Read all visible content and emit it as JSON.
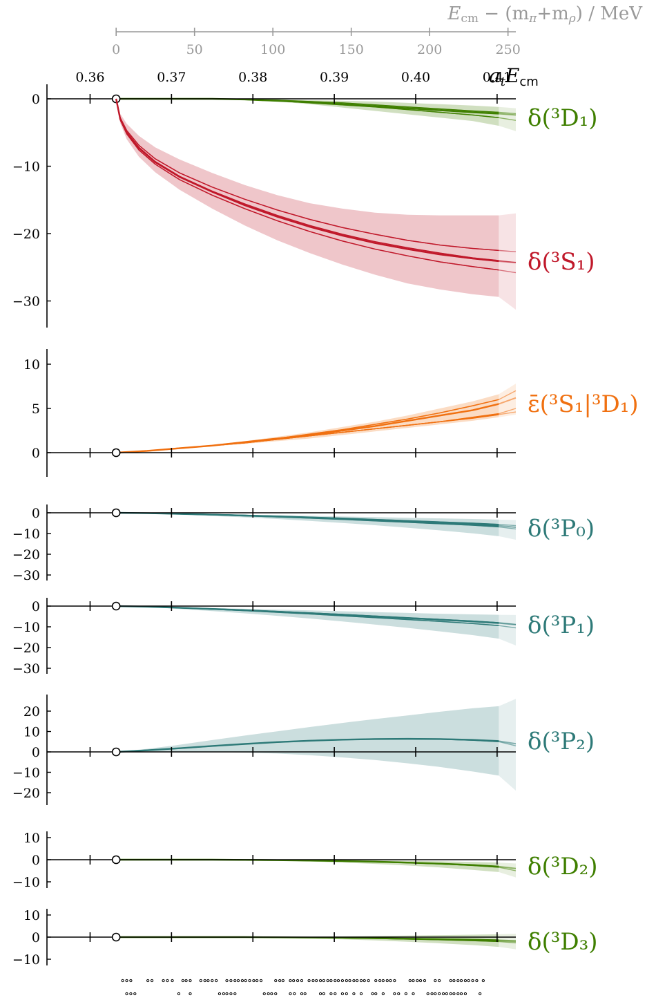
{
  "figure": {
    "top_axis_label": "E_cm − (m_π+m_ρ) / MeV",
    "energy_axis_label": "a_t E_cm"
  },
  "colors": {
    "green": "#3f7f00",
    "red": "#c0182a",
    "orange": "#f07010",
    "teal": "#2e7a78",
    "grey_axis": "#999999"
  },
  "chart_data": [
    {
      "type": "line",
      "name": "top-axis",
      "xlabel": "E_cm − (m_π+m_ρ) / MeV",
      "ticks": [
        0,
        50,
        100,
        150,
        200,
        250
      ],
      "xlim": [
        0,
        255
      ]
    },
    {
      "type": "line",
      "name": "energy-axis",
      "xlabel": "a_t E_cm",
      "ticks": [
        0.36,
        0.37,
        0.38,
        0.39,
        0.4,
        0.41
      ],
      "xlim": [
        0.3547,
        0.4123
      ],
      "threshold": 0.3632,
      "fit_region_end": 0.4102,
      "energy_levels_row1": [
        0.364,
        0.3645,
        0.365,
        0.3671,
        0.3676,
        0.369,
        0.3695,
        0.3701,
        0.3714,
        0.3718,
        0.3723,
        0.3736,
        0.3741,
        0.3745,
        0.375,
        0.3755,
        0.3768,
        0.3773,
        0.3778,
        0.3782,
        0.3787,
        0.3791,
        0.3796,
        0.3801,
        0.3805,
        0.381,
        0.3828,
        0.3833,
        0.3837,
        0.3846,
        0.385,
        0.3855,
        0.386,
        0.3869,
        0.3874,
        0.3878,
        0.3883,
        0.3887,
        0.3892,
        0.3896,
        0.3901,
        0.3905,
        0.391,
        0.3915,
        0.3919,
        0.3924,
        0.3928,
        0.3933,
        0.3937,
        0.3942,
        0.3951,
        0.3956,
        0.396,
        0.3965,
        0.3969,
        0.3974,
        0.3993,
        0.3997,
        0.4002,
        0.4006,
        0.4011,
        0.4024,
        0.4029,
        0.4043,
        0.4047,
        0.4052,
        0.4056,
        0.4061,
        0.4065,
        0.407,
        0.4075,
        0.4083
      ],
      "energy_levels_row2": [
        0.3645,
        0.365,
        0.3655,
        0.3709,
        0.3723,
        0.3759,
        0.3764,
        0.3768,
        0.3773,
        0.3778,
        0.3814,
        0.3819,
        0.3823,
        0.3828,
        0.3846,
        0.3851,
        0.386,
        0.3864,
        0.3883,
        0.3887,
        0.3896,
        0.3901,
        0.391,
        0.3915,
        0.3924,
        0.3933,
        0.3947,
        0.3951,
        0.396,
        0.3974,
        0.3979,
        0.3988,
        0.3997,
        0.4015,
        0.402,
        0.4024,
        0.4029,
        0.4034,
        0.4038,
        0.4043,
        0.4047,
        0.4052,
        0.4056,
        0.4061,
        0.4079
      ]
    },
    {
      "type": "line",
      "name": "δ(3D1)",
      "label": "δ(³D₁)",
      "color": "green",
      "ylim": [
        -34,
        2
      ],
      "yticks": [
        0,
        -10,
        -20,
        -30
      ],
      "x": [
        0.3632,
        0.367,
        0.371,
        0.375,
        0.379,
        0.383,
        0.387,
        0.391,
        0.395,
        0.399,
        0.403,
        0.407,
        0.4102,
        0.4123
      ],
      "series": [
        {
          "values": [
            0,
            0,
            0,
            0,
            -0.1,
            -0.3,
            -0.5,
            -0.8,
            -1.1,
            -1.4,
            -1.7,
            -2.0,
            -2.2,
            -2.4
          ]
        },
        {
          "values": [
            0,
            0,
            0,
            0,
            -0.1,
            -0.3,
            -0.6,
            -0.9,
            -1.2,
            -1.6,
            -2.0,
            -2.4,
            -2.8,
            -3.2
          ]
        },
        {
          "values": [
            0,
            0,
            0,
            0,
            -0.1,
            -0.2,
            -0.4,
            -0.6,
            -0.9,
            -1.2,
            -1.5,
            -1.8,
            -2.0,
            -2.2
          ]
        }
      ],
      "band_upper": [
        0,
        0,
        0,
        0,
        -0.05,
        -0.1,
        -0.2,
        -0.3,
        -0.4,
        -0.6,
        -0.8,
        -1.0,
        -1.2,
        -1.4
      ],
      "band_lower": [
        0,
        0,
        0,
        0,
        -0.15,
        -0.4,
        -0.8,
        -1.3,
        -1.8,
        -2.3,
        -2.8,
        -3.3,
        -4.0,
        -4.8
      ]
    },
    {
      "type": "line",
      "name": "δ(3S1)",
      "label": "δ(³S₁)",
      "color": "red",
      "ylim": [
        -34,
        2
      ],
      "x": [
        0.3632,
        0.3637,
        0.3645,
        0.366,
        0.368,
        0.371,
        0.375,
        0.379,
        0.383,
        0.387,
        0.391,
        0.395,
        0.399,
        0.403,
        0.407,
        0.4102,
        0.4123
      ],
      "series": [
        {
          "values": [
            0,
            -3,
            -5,
            -7.3,
            -9.4,
            -11.6,
            -13.8,
            -15.8,
            -17.5,
            -19.0,
            -20.3,
            -21.4,
            -22.3,
            -23.1,
            -23.7,
            -24.1,
            -24.3
          ]
        },
        {
          "values": [
            0,
            -2.8,
            -4.7,
            -6.9,
            -8.9,
            -11.0,
            -13.1,
            -14.9,
            -16.5,
            -17.9,
            -19.1,
            -20.1,
            -21.0,
            -21.7,
            -22.2,
            -22.5,
            -22.7
          ]
        },
        {
          "values": [
            0,
            -3.1,
            -5.2,
            -7.6,
            -9.7,
            -12.0,
            -14.3,
            -16.3,
            -18.1,
            -19.7,
            -21.1,
            -22.3,
            -23.3,
            -24.2,
            -24.9,
            -25.4,
            -25.8
          ]
        },
        {
          "values": [
            0,
            -3,
            -5,
            -7.2,
            -9.3,
            -11.5,
            -13.7,
            -15.6,
            -17.3,
            -18.8,
            -20.1,
            -21.2,
            -22.1,
            -22.9,
            -23.6,
            -24.0,
            -24.3
          ]
        }
      ],
      "band_upper": [
        0,
        -2.2,
        -3.7,
        -5.5,
        -7.2,
        -9.0,
        -11.0,
        -12.8,
        -14.3,
        -15.5,
        -16.3,
        -16.9,
        -17.2,
        -17.3,
        -17.3,
        -17.3,
        -17.0
      ],
      "band_lower": [
        0,
        -3.6,
        -6.0,
        -8.6,
        -10.9,
        -13.5,
        -16.3,
        -18.8,
        -21.0,
        -22.9,
        -24.6,
        -26.1,
        -27.4,
        -28.3,
        -29.0,
        -29.4,
        -31.3
      ]
    },
    {
      "type": "line",
      "name": "ε̄(3S1|3D1)",
      "label": "ε̄(³S₁|³D₁)",
      "color": "orange",
      "ylim": [
        -3,
        12
      ],
      "yticks": [
        0,
        5,
        10
      ],
      "x": [
        0.3632,
        0.367,
        0.371,
        0.375,
        0.379,
        0.383,
        0.387,
        0.391,
        0.395,
        0.399,
        0.403,
        0.407,
        0.4102,
        0.4123
      ],
      "series": [
        {
          "values": [
            0,
            0.2,
            0.5,
            0.8,
            1.2,
            1.6,
            2.0,
            2.5,
            3.0,
            3.6,
            4.2,
            4.8,
            5.5,
            6.2
          ]
        },
        {
          "values": [
            0,
            0.2,
            0.5,
            0.8,
            1.1,
            1.5,
            1.9,
            2.3,
            2.7,
            3.1,
            3.5,
            3.9,
            4.3,
            4.6
          ]
        },
        {
          "values": [
            0,
            0.2,
            0.5,
            0.8,
            1.2,
            1.6,
            2.1,
            2.6,
            3.2,
            3.8,
            4.5,
            5.3,
            6.0,
            7.0
          ]
        },
        {
          "values": [
            0,
            0.2,
            0.5,
            0.8,
            1.1,
            1.5,
            1.9,
            2.3,
            2.7,
            3.1,
            3.5,
            4.0,
            4.4,
            5.0
          ]
        }
      ],
      "band_upper": [
        0,
        0.3,
        0.6,
        0.9,
        1.3,
        1.8,
        2.3,
        2.9,
        3.5,
        4.2,
        5.0,
        5.8,
        6.6,
        7.8
      ],
      "band_lower": [
        0,
        0.1,
        0.4,
        0.7,
        1.0,
        1.3,
        1.6,
        2.0,
        2.4,
        2.8,
        3.2,
        3.6,
        4.0,
        4.3
      ]
    },
    {
      "type": "line",
      "name": "δ(3P0)",
      "label": "δ(³P₀)",
      "color": "teal",
      "ylim": [
        -33,
        2
      ],
      "yticks": [
        0,
        -10,
        -20,
        -30
      ],
      "x": [
        0.3632,
        0.367,
        0.371,
        0.375,
        0.379,
        0.383,
        0.387,
        0.391,
        0.395,
        0.399,
        0.403,
        0.407,
        0.4102,
        0.4123
      ],
      "series": [
        {
          "values": [
            0,
            -0.2,
            -0.5,
            -0.9,
            -1.3,
            -1.8,
            -2.3,
            -2.9,
            -3.5,
            -4.1,
            -4.8,
            -5.5,
            -6.2,
            -7.0
          ]
        },
        {
          "values": [
            0,
            -0.2,
            -0.6,
            -1.0,
            -1.5,
            -2.0,
            -2.6,
            -3.2,
            -3.9,
            -4.6,
            -5.3,
            -6.0,
            -6.8,
            -7.8
          ]
        },
        {
          "values": [
            0,
            -0.2,
            -0.4,
            -0.8,
            -1.2,
            -1.6,
            -2.1,
            -2.6,
            -3.2,
            -3.8,
            -4.4,
            -5.0,
            -5.6,
            -6.2
          ]
        }
      ],
      "band_upper": [
        0,
        -0.1,
        -0.3,
        -0.6,
        -0.9,
        -1.2,
        -1.5,
        -1.8,
        -2.1,
        -2.4,
        -2.7,
        -3.0,
        -3.3,
        -3.5
      ],
      "band_lower": [
        0,
        -0.4,
        -0.9,
        -1.5,
        -2.2,
        -3.0,
        -3.9,
        -4.9,
        -6.0,
        -7.2,
        -8.5,
        -9.9,
        -11.3,
        -13.0
      ]
    },
    {
      "type": "line",
      "name": "δ(3P1)",
      "label": "δ(³P₁)",
      "color": "teal",
      "ylim": [
        -33,
        2
      ],
      "yticks": [
        0,
        -10,
        -20,
        -30
      ],
      "x": [
        0.3632,
        0.367,
        0.371,
        0.375,
        0.379,
        0.383,
        0.387,
        0.391,
        0.395,
        0.399,
        0.403,
        0.407,
        0.4102,
        0.4123
      ],
      "series": [
        {
          "values": [
            0,
            -0.3,
            -0.8,
            -1.4,
            -2.0,
            -2.7,
            -3.4,
            -4.2,
            -5.0,
            -5.8,
            -6.6,
            -7.4,
            -8.2,
            -9.0
          ]
        },
        {
          "values": [
            0,
            -0.3,
            -0.9,
            -1.5,
            -2.2,
            -3.0,
            -3.8,
            -4.7,
            -5.6,
            -6.5,
            -7.4,
            -8.4,
            -9.4,
            -10.5
          ]
        },
        {
          "values": [
            0,
            -0.3,
            -0.8,
            -1.3,
            -1.9,
            -2.6,
            -3.3,
            -4.0,
            -4.8,
            -5.6,
            -6.4,
            -7.2,
            -8.0,
            -8.8
          ]
        }
      ],
      "band_upper": [
        0,
        -0.2,
        -0.5,
        -0.9,
        -1.3,
        -1.7,
        -2.1,
        -2.5,
        -2.9,
        -3.3,
        -3.7,
        -4.0,
        -4.2,
        -4.3
      ],
      "band_lower": [
        0,
        -0.5,
        -1.4,
        -2.4,
        -3.5,
        -4.7,
        -6.0,
        -7.4,
        -8.9,
        -10.5,
        -12.2,
        -14.0,
        -15.7,
        -19.0
      ]
    },
    {
      "type": "line",
      "name": "δ(3P2)",
      "label": "δ(³P₂)",
      "color": "teal",
      "ylim": [
        -27,
        29
      ],
      "yticks": [
        20,
        10,
        0,
        -10,
        -20
      ],
      "x": [
        0.3632,
        0.367,
        0.371,
        0.375,
        0.379,
        0.383,
        0.387,
        0.391,
        0.395,
        0.399,
        0.403,
        0.407,
        0.4102,
        0.4123
      ],
      "series": [
        {
          "values": [
            0,
            0.8,
            1.8,
            2.9,
            3.9,
            4.8,
            5.5,
            6.0,
            6.3,
            6.4,
            6.3,
            5.9,
            5.3,
            4.0
          ]
        },
        {
          "values": [
            0,
            0.8,
            1.8,
            2.9,
            3.9,
            4.8,
            5.5,
            6.0,
            6.3,
            6.4,
            6.2,
            5.7,
            5.0,
            3.0
          ]
        }
      ],
      "band_upper": [
        0,
        1.5,
        3.5,
        5.8,
        8.0,
        10.1,
        12.2,
        14.2,
        16.1,
        17.9,
        19.7,
        21.4,
        22.4,
        26.0
      ],
      "band_lower": [
        0,
        0.1,
        0.1,
        0,
        -0.3,
        -0.8,
        -1.6,
        -2.7,
        -4.0,
        -5.6,
        -7.4,
        -9.6,
        -11.6,
        -19.0
      ]
    },
    {
      "type": "line",
      "name": "δ(3D2)",
      "label": "δ(³D₂)",
      "color": "green",
      "ylim": [
        -14,
        14
      ],
      "yticks": [
        10,
        0,
        -10
      ],
      "x": [
        0.3632,
        0.367,
        0.371,
        0.375,
        0.379,
        0.383,
        0.387,
        0.391,
        0.395,
        0.399,
        0.403,
        0.407,
        0.4102,
        0.4123
      ],
      "series": [
        {
          "values": [
            0,
            0,
            0,
            0,
            -0.1,
            -0.2,
            -0.4,
            -0.6,
            -0.9,
            -1.3,
            -1.8,
            -2.4,
            -3.1,
            -4.0
          ]
        },
        {
          "values": [
            0,
            0,
            0,
            0,
            -0.1,
            -0.2,
            -0.4,
            -0.7,
            -1.0,
            -1.4,
            -1.9,
            -2.6,
            -3.4,
            -5.0
          ]
        }
      ],
      "band_upper": [
        0,
        0,
        0,
        0,
        0,
        -0.05,
        -0.1,
        -0.2,
        -0.3,
        -0.5,
        -0.7,
        -1.0,
        -1.3,
        -1.7
      ],
      "band_lower": [
        0,
        0,
        0,
        0,
        -0.2,
        -0.4,
        -0.8,
        -1.3,
        -1.9,
        -2.6,
        -3.5,
        -4.6,
        -5.6,
        -8.0
      ]
    },
    {
      "type": "line",
      "name": "δ(3D3)",
      "label": "δ(³D₃)",
      "color": "green",
      "ylim": [
        -14,
        14
      ],
      "yticks": [
        10,
        0,
        -10
      ],
      "x": [
        0.3632,
        0.367,
        0.371,
        0.375,
        0.379,
        0.383,
        0.387,
        0.391,
        0.395,
        0.399,
        0.403,
        0.407,
        0.4102,
        0.4123
      ],
      "series": [
        {
          "values": [
            0,
            0,
            0,
            0,
            0,
            -0.1,
            -0.2,
            -0.3,
            -0.5,
            -0.7,
            -1.0,
            -1.3,
            -1.6,
            -2.0
          ]
        },
        {
          "values": [
            0,
            0,
            0,
            0,
            0,
            -0.1,
            -0.2,
            -0.4,
            -0.6,
            -0.9,
            -1.2,
            -1.6,
            -2.0,
            -2.6
          ]
        },
        {
          "values": [
            0,
            0,
            0,
            0,
            0,
            -0.1,
            -0.2,
            -0.3,
            -0.4,
            -0.6,
            -0.8,
            -1.0,
            -1.3,
            -1.6
          ]
        }
      ],
      "band_upper": [
        0,
        0,
        0,
        0,
        0,
        0.1,
        0.2,
        0.3,
        0.5,
        0.7,
        0.9,
        1.1,
        1.3,
        1.5
      ],
      "band_lower": [
        0,
        0,
        0,
        0,
        -0.1,
        -0.3,
        -0.6,
        -1.0,
        -1.5,
        -2.1,
        -2.8,
        -3.6,
        -4.4,
        -5.5
      ]
    }
  ]
}
